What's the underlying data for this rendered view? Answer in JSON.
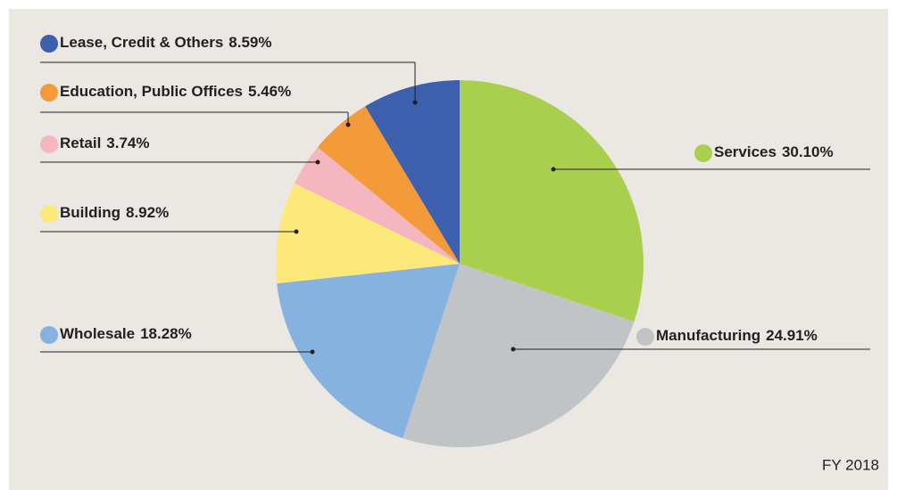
{
  "chart_data": {
    "type": "pie",
    "categories": [
      "Services",
      "Manufacturing",
      "Wholesale",
      "Building",
      "Retail",
      "Education, Public Offices",
      "Lease, Credit & Others"
    ],
    "values": [
      30.1,
      24.91,
      18.28,
      8.92,
      3.74,
      5.46,
      8.59
    ],
    "value_labels": [
      "30.10%",
      "24.91%",
      "18.28%",
      "8.92%",
      "3.74%",
      "5.46%",
      "8.59%"
    ],
    "colors": [
      "#a8cf4e",
      "#c1c4c6",
      "#86b2e0",
      "#fde97a",
      "#f4b6bf",
      "#f39a3a",
      "#3c5fae"
    ],
    "annotation": "FY 2018"
  }
}
